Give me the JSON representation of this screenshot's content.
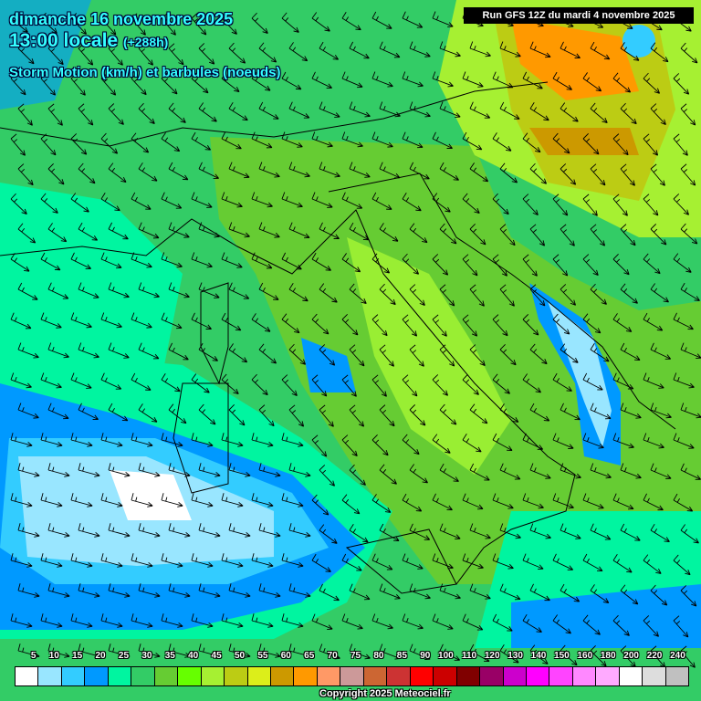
{
  "header": {
    "date": "dimanche 16 novembre 2025",
    "time": "13:00 locale",
    "lead": "(+288h)",
    "parameter": "Storm Motion (km/h) et barbules (noeuds)",
    "run": "Run GFS 12Z du mardi 4 novembre 2025"
  },
  "legend": {
    "labels": [
      "5",
      "10",
      "15",
      "20",
      "25",
      "30",
      "35",
      "40",
      "45",
      "50",
      "55",
      "60",
      "65",
      "70",
      "75",
      "80",
      "85",
      "90",
      "100",
      "110",
      "120",
      "130",
      "140",
      "150",
      "160",
      "180",
      "200",
      "220",
      "240"
    ],
    "colors": [
      "#ffffff",
      "#99e6ff",
      "#33ccff",
      "#0099ff",
      "#00f5a0",
      "#33cc66",
      "#66cc33",
      "#66ff00",
      "#a6f032",
      "#bccc14",
      "#dcee1a",
      "#cc9900",
      "#ff9900",
      "#ff9966",
      "#cc9999",
      "#cc6633",
      "#cc3333",
      "#ff0000",
      "#cc0000",
      "#800000",
      "#990066",
      "#cc00cc",
      "#ff00ff",
      "#ff44ff",
      "#ff88ff",
      "#ffaaff",
      "#ffffff",
      "#dddddd",
      "#c0c0c0"
    ]
  },
  "copyright": "Copyright 2025 Meteociel.fr",
  "wind_direction": "south-east"
}
